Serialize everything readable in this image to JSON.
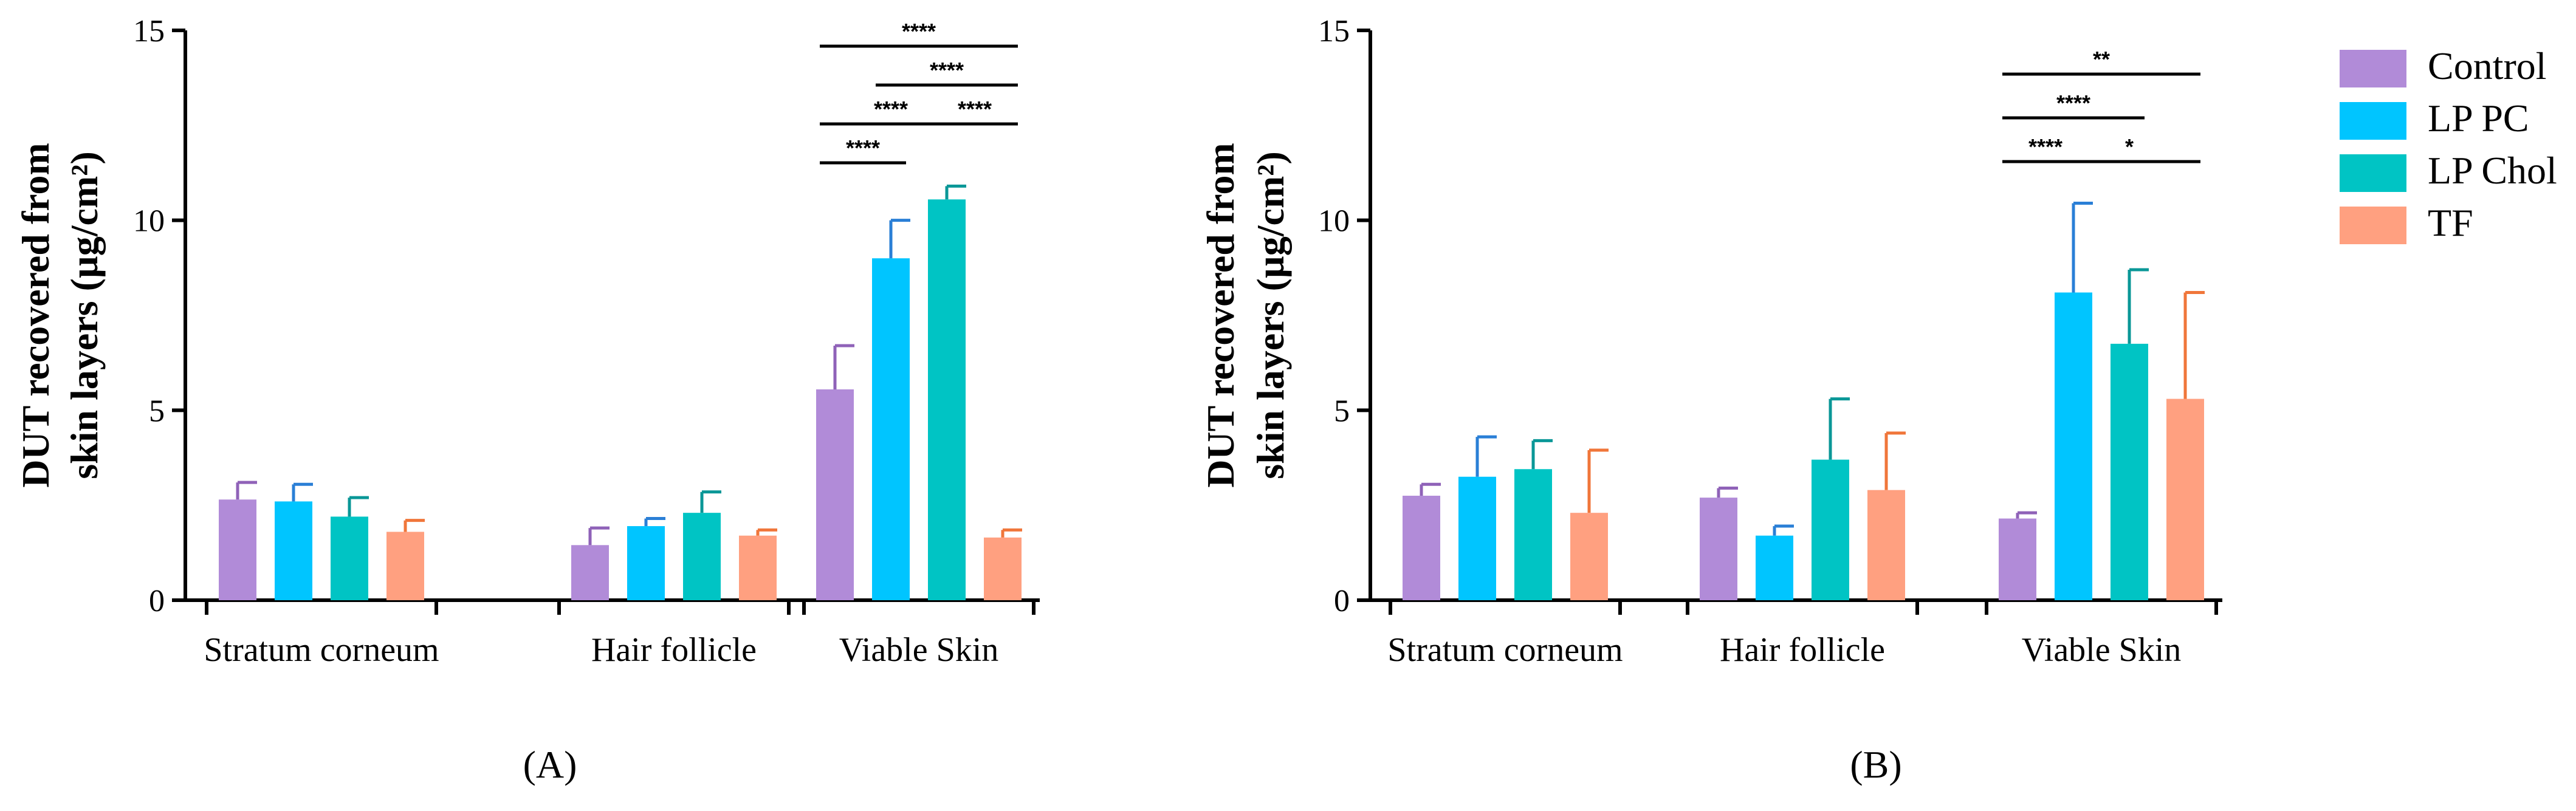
{
  "chart_data": [
    {
      "type": "bar",
      "panel_label": "(A)",
      "ylabel": "DUT recovered from skin layers (µg/cm²)",
      "ylabel_lines": [
        "DUT recovered from",
        "skin layers (µg/cm²)"
      ],
      "xlabel": "",
      "ylim": [
        0,
        15
      ],
      "yticks": [
        "0",
        "5",
        "10",
        "15"
      ],
      "categories": [
        "Stratum corneum",
        "Hair follicle",
        "Viable Skin"
      ],
      "series": [
        {
          "name": "Control",
          "values": [
            2.65,
            1.45,
            5.55
          ],
          "errors": [
            0.45,
            0.45,
            1.15
          ]
        },
        {
          "name": "LP PC",
          "values": [
            2.6,
            1.95,
            9.0
          ],
          "errors": [
            0.45,
            0.2,
            1.0
          ]
        },
        {
          "name": "LP Chol",
          "values": [
            2.2,
            2.3,
            10.55
          ],
          "errors": [
            0.5,
            0.55,
            0.35
          ]
        },
        {
          "name": "TF",
          "values": [
            1.8,
            1.7,
            1.65
          ],
          "errors": [
            0.3,
            0.15,
            0.2
          ]
        }
      ],
      "significance": [
        {
          "category": "Viable Skin",
          "from": "Control",
          "to": "TF",
          "label": "****"
        },
        {
          "category": "Viable Skin",
          "from": "LP PC",
          "to": "TF",
          "label": "****"
        },
        {
          "category": "Viable Skin",
          "from": "Control",
          "to": "LP Chol",
          "label": "****"
        },
        {
          "category": "Viable Skin",
          "from": "LP Chol",
          "to": "TF",
          "label": "****"
        },
        {
          "category": "Viable Skin",
          "from": "Control",
          "to": "LP PC",
          "label": "****"
        }
      ]
    },
    {
      "type": "bar",
      "panel_label": "(B)",
      "ylabel": "DUT recovered from skin layers (µg/cm²)",
      "ylabel_lines": [
        "DUT recovered from",
        "skin layers (µg/cm²)"
      ],
      "xlabel": "",
      "ylim": [
        0,
        15
      ],
      "yticks": [
        "0",
        "5",
        "10",
        "15"
      ],
      "categories": [
        "Stratum corneum",
        "Hair follicle",
        "Viable Skin"
      ],
      "series": [
        {
          "name": "Control",
          "values": [
            2.75,
            2.7,
            2.15
          ],
          "errors": [
            0.3,
            0.25,
            0.15
          ]
        },
        {
          "name": "LP PC",
          "values": [
            3.25,
            1.7,
            8.1
          ],
          "errors": [
            1.05,
            0.25,
            2.35
          ]
        },
        {
          "name": "LP Chol",
          "values": [
            3.45,
            3.7,
            6.75
          ],
          "errors": [
            0.75,
            1.6,
            1.95
          ]
        },
        {
          "name": "TF",
          "values": [
            2.3,
            2.9,
            5.3
          ],
          "errors": [
            1.65,
            1.5,
            2.8
          ]
        }
      ],
      "significance": [
        {
          "category": "Viable Skin",
          "from": "Control",
          "to": "TF",
          "label": "**"
        },
        {
          "category": "Viable Skin",
          "from": "Control",
          "to": "LP Chol",
          "label": "****"
        },
        {
          "category": "Viable Skin",
          "from": "Control",
          "to": "LP PC",
          "label": "****"
        },
        {
          "category": "Viable Skin",
          "from": "LP PC",
          "to": "TF",
          "label": "*"
        }
      ]
    }
  ],
  "legend": [
    {
      "name": "Control",
      "color": "#b18bd8"
    },
    {
      "name": "LP PC",
      "color": "#00c5ff"
    },
    {
      "name": "LP Chol",
      "color": "#00c4c4"
    },
    {
      "name": "TF",
      "color": "#ffa080"
    }
  ],
  "colors": {
    "Control": {
      "fill": "#b18bd8",
      "error": "#8f62b8"
    },
    "LP PC": {
      "fill": "#00c5ff",
      "error": "#2a7fd6"
    },
    "LP Chol": {
      "fill": "#00c4c4",
      "error": "#0a9797"
    },
    "TF": {
      "fill": "#ffa080",
      "error": "#f0763a"
    }
  }
}
